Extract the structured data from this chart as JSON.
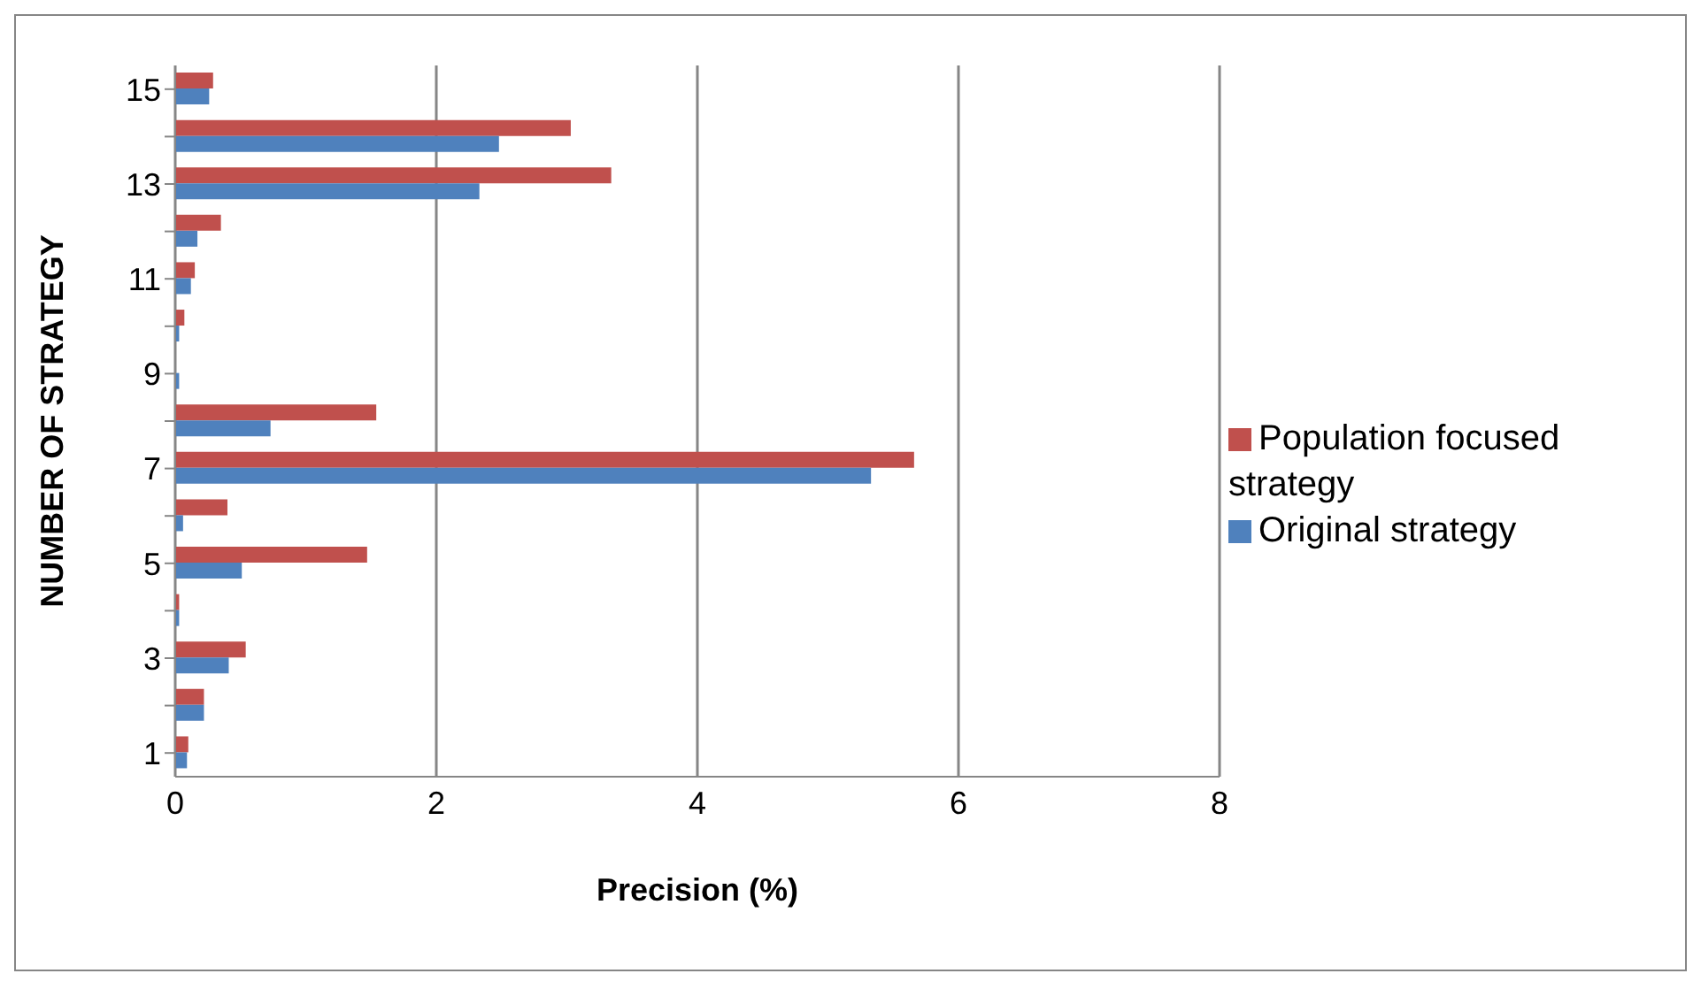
{
  "chart_data": {
    "type": "bar",
    "orientation": "horizontal",
    "xlabel": "Precision (%)",
    "ylabel": "NUMBER OF STRATEGY",
    "categories": [
      "15",
      null,
      "13",
      null,
      "11",
      null,
      "9",
      null,
      "7",
      null,
      "5",
      null,
      "3",
      null,
      "1"
    ],
    "series": [
      {
        "name": "Population focused strategy",
        "color": "#c0504d",
        "values": [
          0.29,
          3.03,
          3.34,
          0.35,
          0.15,
          0.07,
          0,
          1.54,
          5.66,
          0.4,
          1.47,
          0.03,
          0.54,
          0.22,
          0.1
        ]
      },
      {
        "name": "Original strategy",
        "color": "#4f81bd",
        "values": [
          0.26,
          2.48,
          2.33,
          0.17,
          0.12,
          0.03,
          0.03,
          0.73,
          5.33,
          0.06,
          0.51,
          0.03,
          0.41,
          0.22,
          0.09
        ]
      }
    ],
    "xlim": [
      0,
      8
    ],
    "xticks": [
      0,
      2,
      4,
      6,
      8
    ],
    "grid": "x",
    "legend": "right"
  }
}
